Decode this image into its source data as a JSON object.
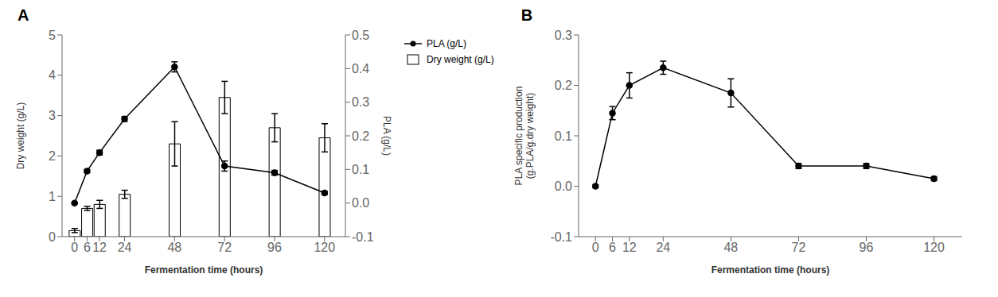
{
  "chart_data": [
    {
      "type": "bar",
      "title": "A",
      "x": [
        0,
        6,
        12,
        24,
        48,
        72,
        96,
        120
      ],
      "xlabel": "Fermentation time (hours)",
      "ylabel": "Dry weight (g/L)",
      "y2label": "PLA (g/L)",
      "xlim": [
        -6,
        130
      ],
      "xticks": [
        0,
        6,
        12,
        24,
        48,
        72,
        96,
        120
      ],
      "ylim": [
        0,
        5
      ],
      "yticks": [
        0,
        1,
        2,
        3,
        4,
        5
      ],
      "y2lim": [
        -0.1,
        0.5
      ],
      "y2ticks": [
        -0.1,
        {
          "value": 0,
          "label": "0.0"
        },
        0.1,
        0.2,
        0.3,
        0.4,
        0.5
      ],
      "grid": false,
      "legend": "upper right",
      "series": [
        {
          "name": "Dry weight (g/L)",
          "type": "bar",
          "color": "white",
          "values": [
            0.15,
            0.7,
            0.8,
            1.05,
            2.3,
            3.45,
            2.7,
            2.45
          ],
          "errors": [
            0.05,
            0.05,
            0.1,
            0.1,
            0.55,
            0.4,
            0.35,
            0.35
          ]
        },
        {
          "name": "PLA (g/L)",
          "type": "line",
          "axis": "y2",
          "color": "black",
          "marker": "o",
          "values": [
            0.0,
            0.095,
            0.15,
            0.25,
            0.405,
            0.11,
            0.09,
            0.03
          ],
          "errors": [
            0.002,
            0.005,
            0.007,
            0.007,
            0.015,
            0.015,
            0.007,
            0.005
          ]
        }
      ]
    },
    {
      "type": "line",
      "title": "B",
      "x": [
        0,
        6,
        12,
        24,
        48,
        72,
        96,
        120
      ],
      "xlabel": "Fermentation time (hours)",
      "ylabel": "PLA specific production\n(g.PLA/g.dry weight)",
      "xlim": [
        -6,
        130
      ],
      "xticks": [
        0,
        6,
        12,
        24,
        48,
        72,
        96,
        120
      ],
      "ylim": [
        -0.1,
        0.3
      ],
      "yticks": [
        -0.1,
        {
          "value": 0,
          "label": "0.0"
        },
        0.1,
        0.2,
        0.3
      ],
      "grid": false,
      "series": [
        {
          "color": "black",
          "marker": "o",
          "values": [
            0.0,
            0.145,
            0.2,
            0.235,
            0.185,
            0.04,
            0.04,
            0.015
          ],
          "errors": [
            0.003,
            0.013,
            0.025,
            0.013,
            0.028,
            0.005,
            0.005,
            0.004
          ]
        }
      ]
    }
  ]
}
